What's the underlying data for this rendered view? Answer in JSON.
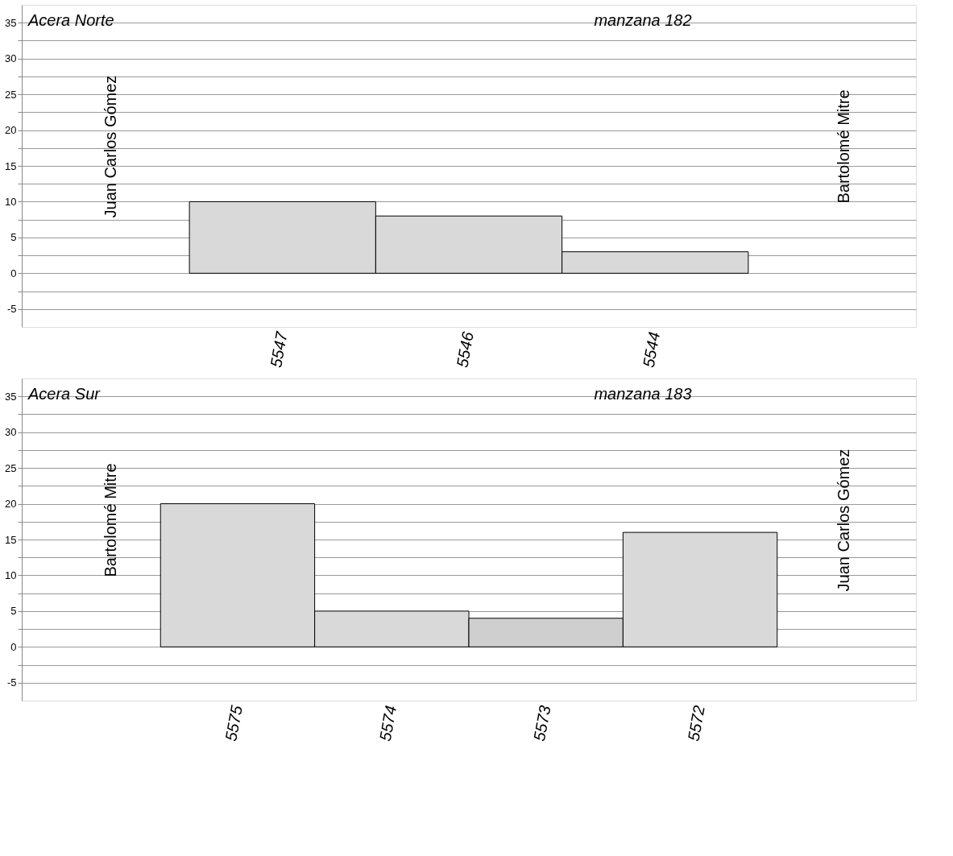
{
  "chart_data": [
    {
      "type": "bar",
      "title": "Acera Norte",
      "subtitle": "manzana 182",
      "categories": [
        "5547",
        "5546",
        "5544"
      ],
      "values": [
        10,
        8,
        3
      ],
      "colors": [
        "#d9d9d9",
        "#d9d9d9",
        "#d9d9d9"
      ],
      "annotations": [
        "Juan Carlos Gómez",
        "Bartolomé Mitre"
      ],
      "ylim": [
        -7.5,
        37.5
      ],
      "yticks": [
        -5,
        {
          "value": -2.5,
          "label": null
        },
        0,
        {
          "value": 2.5,
          "label": null
        },
        5,
        {
          "value": 7.5,
          "label": null
        },
        10,
        {
          "value": 12.5,
          "label": null
        },
        15,
        {
          "value": 17.5,
          "label": null
        },
        20,
        {
          "value": 22.5,
          "label": null
        },
        25,
        {
          "value": 27.5,
          "label": null
        },
        30,
        {
          "value": 32.5,
          "label": null
        },
        35
      ],
      "grid": "y"
    },
    {
      "type": "bar",
      "title": "Acera Sur",
      "subtitle": "manzana 183",
      "categories": [
        "5575",
        "5574",
        "5573",
        "5572"
      ],
      "values": [
        20,
        5,
        4,
        16
      ],
      "colors": [
        "#d9d9d9",
        "#d9d9d9",
        "#cfcfcf",
        "#d9d9d9"
      ],
      "annotations": [
        "Bartolomé Mitre",
        "Juan Carlos Gómez"
      ],
      "ylim": [
        -7.5,
        37.5
      ],
      "yticks": [
        -5,
        {
          "value": -2.5,
          "label": null
        },
        0,
        {
          "value": 2.5,
          "label": null
        },
        5,
        {
          "value": 7.5,
          "label": null
        },
        10,
        {
          "value": 12.5,
          "label": null
        },
        15,
        {
          "value": 17.5,
          "label": null
        },
        20,
        {
          "value": 22.5,
          "label": null
        },
        25,
        {
          "value": 27.5,
          "label": null
        },
        30,
        {
          "value": 32.5,
          "label": null
        },
        35
      ],
      "grid": "y"
    }
  ]
}
